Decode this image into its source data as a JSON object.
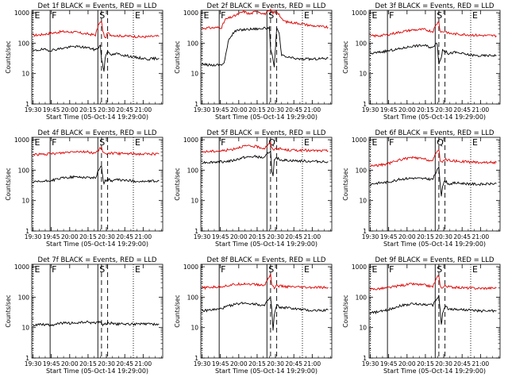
{
  "page": {
    "background": "#ffffff"
  },
  "colors": {
    "events": "#000000",
    "lld": "#dd0000",
    "axes": "#000000"
  },
  "common": {
    "ylabel": "Counts/sec",
    "xlabel": "Start Time (05-Oct-14 19:29:00)",
    "x_ticks": [
      "19:30",
      "19:45",
      "20:00",
      "20:15",
      "20:30",
      "20:45",
      "21:00"
    ],
    "y_ticks": [
      "1",
      "10",
      "100",
      "1000"
    ],
    "ylim": [
      1,
      1200
    ],
    "xlim_min": [
      0,
      107
    ],
    "ylog": true,
    "x_tick_minutes": [
      1,
      16,
      31,
      46,
      61,
      76,
      91
    ],
    "markers": [
      {
        "label": "E",
        "minute": 1,
        "style": "dotted"
      },
      {
        "label": "F",
        "minute": 15,
        "style": "solid"
      },
      {
        "label": "S",
        "minute": 54,
        "style": "solid"
      },
      {
        "label": "",
        "minute": 57,
        "style": "dashed"
      },
      {
        "label": "",
        "minute": 62,
        "style": "dashed"
      },
      {
        "label": "E",
        "minute": 83,
        "style": "dotted"
      }
    ]
  },
  "chart_data": [
    {
      "type": "line",
      "title": "Det 1f BLACK = Events, RED = LLD",
      "markers_text": [
        "E",
        "F",
        "S",
        "E"
      ],
      "series": [
        {
          "name": "Events",
          "color": "#000000",
          "x": [
            1,
            8,
            15,
            25,
            35,
            45,
            52,
            54,
            56,
            57,
            59,
            60,
            62,
            64,
            70,
            75,
            85,
            95,
            104
          ],
          "y": [
            55,
            62,
            58,
            68,
            78,
            72,
            60,
            70,
            85,
            30,
            12,
            35,
            60,
            40,
            45,
            40,
            34,
            30,
            32
          ]
        },
        {
          "name": "LLD",
          "color": "#dd0000",
          "x": [
            1,
            8,
            15,
            25,
            35,
            45,
            52,
            55,
            57,
            58,
            60,
            62,
            64,
            70,
            80,
            90,
            104
          ],
          "y": [
            180,
            190,
            210,
            240,
            230,
            200,
            185,
            450,
            500,
            260,
            140,
            220,
            190,
            175,
            170,
            160,
            170
          ]
        }
      ]
    },
    {
      "type": "line",
      "title": "Det 2f BLACK = Events, RED = LLD",
      "markers_text": [
        "E",
        "F",
        "S",
        "E"
      ],
      "series": [
        {
          "name": "Events",
          "color": "#000000",
          "x": [
            1,
            10,
            17,
            19,
            23,
            28,
            33,
            40,
            47,
            54,
            56,
            57,
            59,
            60,
            61,
            62,
            64,
            66,
            70,
            80,
            90,
            104
          ],
          "y": [
            20,
            19,
            20,
            22,
            140,
            250,
            275,
            290,
            300,
            310,
            320,
            60,
            30,
            15,
            80,
            300,
            200,
            40,
            35,
            30,
            30,
            32
          ]
        },
        {
          "name": "LLD",
          "color": "#dd0000",
          "x": [
            1,
            10,
            17,
            20,
            28,
            35,
            40,
            46,
            52,
            57,
            59,
            62,
            64,
            66,
            70,
            80,
            90,
            104
          ],
          "y": [
            310,
            320,
            330,
            600,
            800,
            1100,
            900,
            1150,
            900,
            1200,
            1000,
            1100,
            900,
            600,
            500,
            450,
            380,
            330
          ]
        }
      ]
    },
    {
      "type": "line",
      "title": "Det 3f BLACK = Events, RED = LLD",
      "markers_text": [
        "E",
        "F",
        "S",
        "E"
      ],
      "series": [
        {
          "name": "Events",
          "color": "#000000",
          "x": [
            1,
            8,
            15,
            25,
            35,
            45,
            52,
            55,
            56,
            57,
            59,
            60,
            62,
            65,
            70,
            80,
            90,
            104
          ],
          "y": [
            45,
            50,
            55,
            65,
            80,
            85,
            70,
            110,
            75,
            20,
            35,
            60,
            55,
            45,
            50,
            42,
            38,
            40
          ]
        },
        {
          "name": "LLD",
          "color": "#dd0000",
          "x": [
            1,
            8,
            15,
            25,
            35,
            45,
            52,
            55,
            57,
            58,
            60,
            62,
            65,
            70,
            80,
            90,
            104
          ],
          "y": [
            170,
            175,
            190,
            230,
            270,
            280,
            240,
            420,
            520,
            250,
            230,
            250,
            210,
            200,
            190,
            180,
            175
          ]
        }
      ]
    },
    {
      "type": "line",
      "title": "Det 4f BLACK = Events, RED = LLD",
      "markers_text": [
        "E",
        "F",
        "S",
        "E"
      ],
      "series": [
        {
          "name": "Events",
          "color": "#000000",
          "x": [
            1,
            8,
            15,
            25,
            35,
            45,
            52,
            55,
            57,
            58,
            59,
            60,
            62,
            65,
            70,
            80,
            90,
            104
          ],
          "y": [
            40,
            42,
            45,
            55,
            60,
            58,
            55,
            110,
            140,
            60,
            35,
            45,
            50,
            45,
            48,
            45,
            42,
            44
          ]
        },
        {
          "name": "LLD",
          "color": "#dd0000",
          "x": [
            1,
            8,
            15,
            25,
            35,
            45,
            52,
            55,
            57,
            58,
            60,
            62,
            65,
            70,
            80,
            90,
            104
          ],
          "y": [
            330,
            330,
            340,
            370,
            420,
            400,
            360,
            480,
            560,
            380,
            330,
            370,
            360,
            350,
            350,
            340,
            340
          ]
        }
      ]
    },
    {
      "type": "line",
      "title": "Det 5f BLACK = Events, RED = LLD",
      "markers_text": [
        "F",
        "Q",
        "E"
      ],
      "series": [
        {
          "name": "Events",
          "color": "#000000",
          "x": [
            1,
            10,
            17,
            25,
            35,
            45,
            52,
            55,
            57,
            58,
            59,
            60,
            62,
            65,
            70,
            80,
            90,
            104
          ],
          "y": [
            180,
            185,
            190,
            200,
            260,
            280,
            250,
            380,
            420,
            100,
            60,
            200,
            250,
            220,
            210,
            200,
            195,
            190
          ]
        },
        {
          "name": "LLD",
          "color": "#dd0000",
          "x": [
            1,
            10,
            17,
            25,
            35,
            45,
            52,
            55,
            57,
            58,
            60,
            62,
            65,
            70,
            80,
            90,
            104
          ],
          "y": [
            400,
            420,
            430,
            480,
            620,
            600,
            520,
            700,
            780,
            520,
            480,
            520,
            500,
            460,
            450,
            440,
            430
          ]
        }
      ]
    },
    {
      "type": "line",
      "title": "Det 6f BLACK = Events, RED = LLD",
      "markers_text": [
        "E",
        "F",
        "Q",
        "E"
      ],
      "series": [
        {
          "name": "Events",
          "color": "#000000",
          "x": [
            1,
            8,
            15,
            25,
            35,
            45,
            52,
            55,
            57,
            58,
            59,
            60,
            62,
            65,
            70,
            80,
            90,
            104
          ],
          "y": [
            35,
            38,
            40,
            50,
            55,
            52,
            50,
            90,
            120,
            40,
            15,
            30,
            45,
            35,
            38,
            36,
            34,
            36
          ]
        },
        {
          "name": "LLD",
          "color": "#dd0000",
          "x": [
            1,
            8,
            15,
            25,
            35,
            45,
            52,
            55,
            57,
            58,
            60,
            62,
            65,
            70,
            80,
            90,
            104
          ],
          "y": [
            140,
            145,
            160,
            220,
            260,
            230,
            200,
            380,
            500,
            220,
            180,
            230,
            210,
            200,
            190,
            180,
            180
          ]
        }
      ]
    },
    {
      "type": "line",
      "title": "Det 7f BLACK = Events, RED = LLD",
      "markers_text": [
        "E",
        "F",
        "S",
        "E"
      ],
      "series": [
        {
          "name": "Events",
          "color": "#000000",
          "x": [
            1,
            8,
            15,
            25,
            35,
            45,
            52,
            55,
            57,
            58,
            60,
            62,
            65,
            70,
            80,
            90,
            104
          ],
          "y": [
            12,
            13,
            12,
            14,
            14,
            15,
            14,
            16,
            14,
            12,
            13,
            14,
            14,
            13,
            13,
            13,
            13
          ]
        }
      ]
    },
    {
      "type": "line",
      "title": "Det 8f BLACK = Events, RED = LLD",
      "markers_text": [
        "F",
        "S",
        "E"
      ],
      "series": [
        {
          "name": "Events",
          "color": "#000000",
          "x": [
            1,
            8,
            15,
            25,
            35,
            45,
            52,
            55,
            57,
            58,
            59,
            60,
            62,
            65,
            70,
            80,
            90,
            104
          ],
          "y": [
            35,
            38,
            40,
            55,
            65,
            60,
            52,
            80,
            95,
            40,
            8,
            25,
            55,
            45,
            45,
            40,
            36,
            38
          ]
        },
        {
          "name": "LLD",
          "color": "#dd0000",
          "x": [
            1,
            8,
            15,
            25,
            35,
            45,
            52,
            55,
            57,
            58,
            60,
            62,
            65,
            70,
            80,
            90,
            104
          ],
          "y": [
            200,
            210,
            220,
            250,
            280,
            260,
            240,
            420,
            560,
            260,
            200,
            240,
            230,
            220,
            210,
            205,
            210
          ]
        }
      ]
    },
    {
      "type": "line",
      "title": "Det 9f BLACK = Events, RED = LLD",
      "markers_text": [
        "E",
        "F",
        "S",
        "E"
      ],
      "series": [
        {
          "name": "Events",
          "color": "#000000",
          "x": [
            1,
            8,
            15,
            25,
            35,
            45,
            52,
            55,
            57,
            58,
            59,
            60,
            62,
            65,
            70,
            80,
            90,
            104
          ],
          "y": [
            30,
            33,
            38,
            52,
            60,
            58,
            55,
            85,
            110,
            40,
            12,
            28,
            50,
            40,
            40,
            38,
            35,
            36
          ]
        },
        {
          "name": "LLD",
          "color": "#dd0000",
          "x": [
            1,
            8,
            15,
            25,
            35,
            45,
            52,
            55,
            57,
            58,
            60,
            62,
            65,
            70,
            80,
            90,
            104
          ],
          "y": [
            180,
            190,
            200,
            240,
            270,
            250,
            220,
            400,
            520,
            240,
            200,
            240,
            220,
            210,
            200,
            195,
            200
          ]
        }
      ]
    }
  ]
}
